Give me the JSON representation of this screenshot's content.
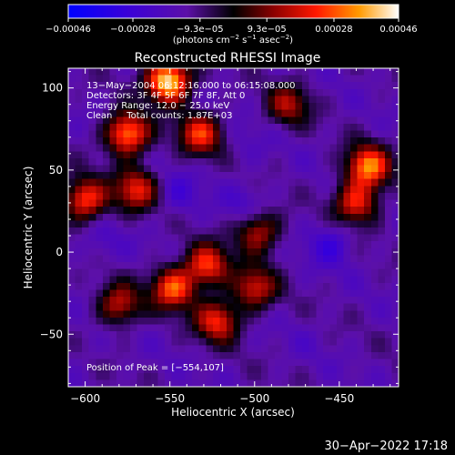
{
  "chart_data": {
    "type": "heatmap",
    "title": "Reconstructed RHESSI Image",
    "xlabel": "Heliocentric X (arcsec)",
    "ylabel": "Heliocentric Y (arcsec)",
    "xlim": [
      -610,
      -415
    ],
    "ylim": [
      -82,
      112
    ],
    "x_ticks": [
      -600,
      -550,
      -500,
      -450
    ],
    "x_tick_labels": [
      "−600",
      "−550",
      "−500",
      "−450"
    ],
    "y_ticks": [
      -50,
      0,
      50,
      100
    ],
    "y_tick_labels": [
      "−50",
      "0",
      "50",
      "100"
    ],
    "colorbar": {
      "range": [
        -0.00046,
        0.00046
      ],
      "ticks": [
        -0.00046,
        -0.00028,
        -9.3e-05,
        9.3e-05,
        0.00028,
        0.00046
      ],
      "tick_labels": [
        "−0.00046",
        "−0.00028",
        "−9.3e−05",
        "9.3e−05",
        "0.00028",
        "0.00046"
      ],
      "label_parts": [
        "(photons cm",
        "−2",
        " s",
        "−1",
        " asec",
        "−2",
        ")"
      ]
    },
    "annotations": [
      "13−May−2004 06:12:16.000 to 06:15:08.000",
      "Detectors: 3F 4F 5F 6F 7F 8F, Att 0",
      "Energy Range: 12.0 − 25.0 keV",
      "Clean     Total counts: 1.87E+03"
    ],
    "peak_label": "Position of Peak = [−554,107]",
    "peak": [
      -554,
      107
    ],
    "bright_sources": [
      {
        "x": -551,
        "y": 104,
        "level": 0.00046
      },
      {
        "x": -575,
        "y": 72,
        "level": 0.00034
      },
      {
        "x": -532,
        "y": 72,
        "level": 0.00022
      },
      {
        "x": -600,
        "y": 32,
        "level": 0.00026
      },
      {
        "x": -570,
        "y": 38,
        "level": 0.0002
      },
      {
        "x": -528,
        "y": -8,
        "level": 0.00024
      },
      {
        "x": -548,
        "y": -22,
        "level": 0.00028
      },
      {
        "x": -522,
        "y": -42,
        "level": 0.00022
      },
      {
        "x": -500,
        "y": -22,
        "level": 0.00018
      },
      {
        "x": -433,
        "y": 52,
        "level": 0.00032
      },
      {
        "x": -440,
        "y": 30,
        "level": 0.00022
      },
      {
        "x": -498,
        "y": 12,
        "level": 0.00016
      },
      {
        "x": -580,
        "y": -32,
        "level": 0.00016
      },
      {
        "x": -480,
        "y": 90,
        "level": 0.00012
      }
    ],
    "dim_regions": [
      {
        "x": -545,
        "y": 35,
        "level": -0.00024
      },
      {
        "x": -455,
        "y": 5,
        "level": -0.00028
      },
      {
        "x": -505,
        "y": 30,
        "level": -0.00022
      },
      {
        "x": -590,
        "y": 5,
        "level": -0.0002
      },
      {
        "x": -470,
        "y": -55,
        "level": -0.00016
      },
      {
        "x": -600,
        "y": -60,
        "level": -0.00016
      },
      {
        "x": -505,
        "y": 65,
        "level": -0.00018
      }
    ]
  },
  "footer": {
    "timestamp": "30−Apr−2022 17:18"
  }
}
